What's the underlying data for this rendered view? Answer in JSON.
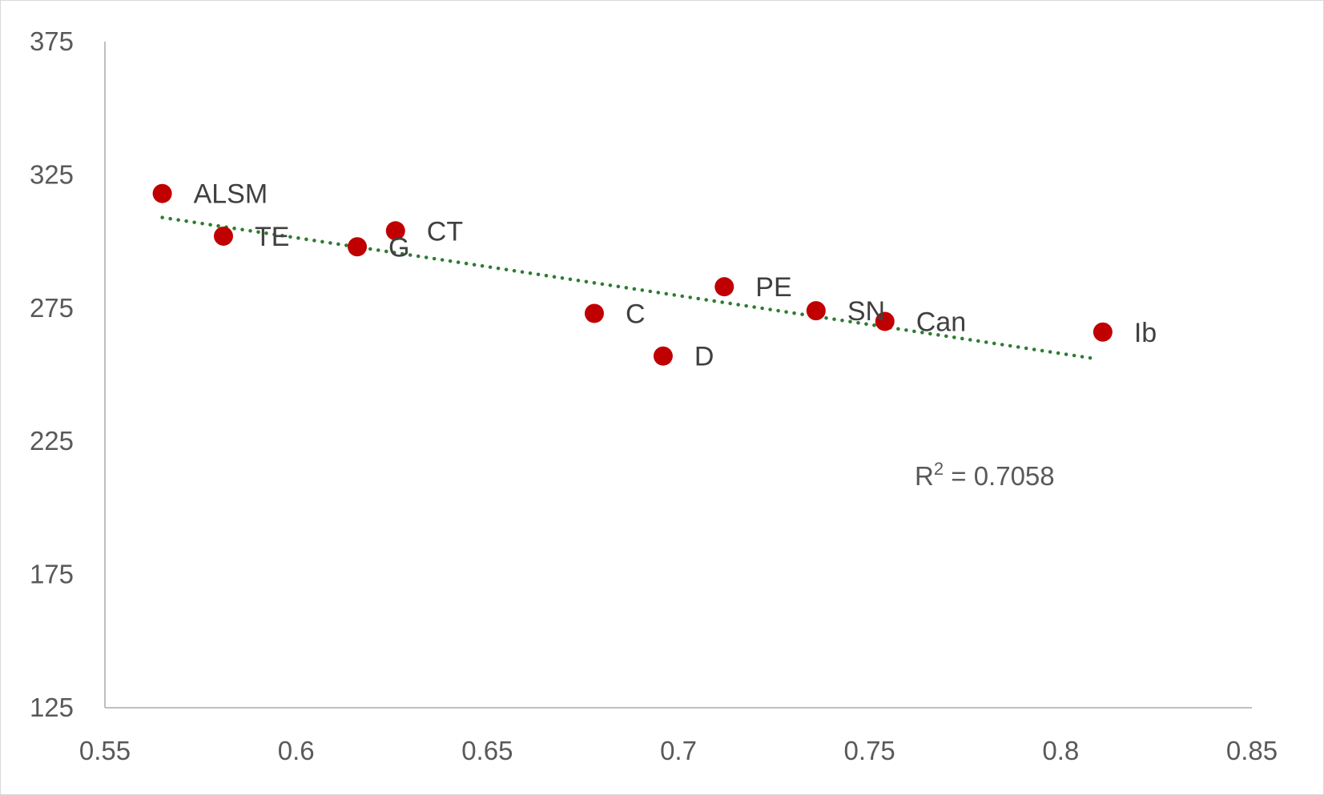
{
  "chart_data": {
    "type": "scatter",
    "title": "",
    "xlabel": "",
    "ylabel": "",
    "xlim": [
      0.55,
      0.85
    ],
    "ylim": [
      125,
      375
    ],
    "x_ticks": [
      "0.55",
      "0.6",
      "0.65",
      "0.7",
      "0.75",
      "0.8",
      "0.85"
    ],
    "y_ticks": [
      "125",
      "175",
      "225",
      "275",
      "325",
      "375"
    ],
    "grid": false,
    "legend": "none",
    "points": [
      {
        "label": "ALSM",
        "x": 0.565,
        "y": 318
      },
      {
        "label": "TE",
        "x": 0.581,
        "y": 302
      },
      {
        "label": "G",
        "x": 0.616,
        "y": 298
      },
      {
        "label": "CT",
        "x": 0.626,
        "y": 304
      },
      {
        "label": "C",
        "x": 0.678,
        "y": 273
      },
      {
        "label": "D",
        "x": 0.696,
        "y": 257
      },
      {
        "label": "PE",
        "x": 0.712,
        "y": 283
      },
      {
        "label": "SN",
        "x": 0.736,
        "y": 274
      },
      {
        "label": "Can",
        "x": 0.754,
        "y": 270
      },
      {
        "label": "Ib",
        "x": 0.811,
        "y": 266
      }
    ],
    "trendline": {
      "type": "linear",
      "x": [
        0.565,
        0.809
      ],
      "y": [
        309,
        256
      ],
      "r_squared_label": "0.7058"
    },
    "colors": {
      "points": "#c00000",
      "trendline": "#2e7d32",
      "axis": "#bfbfbf"
    }
  }
}
